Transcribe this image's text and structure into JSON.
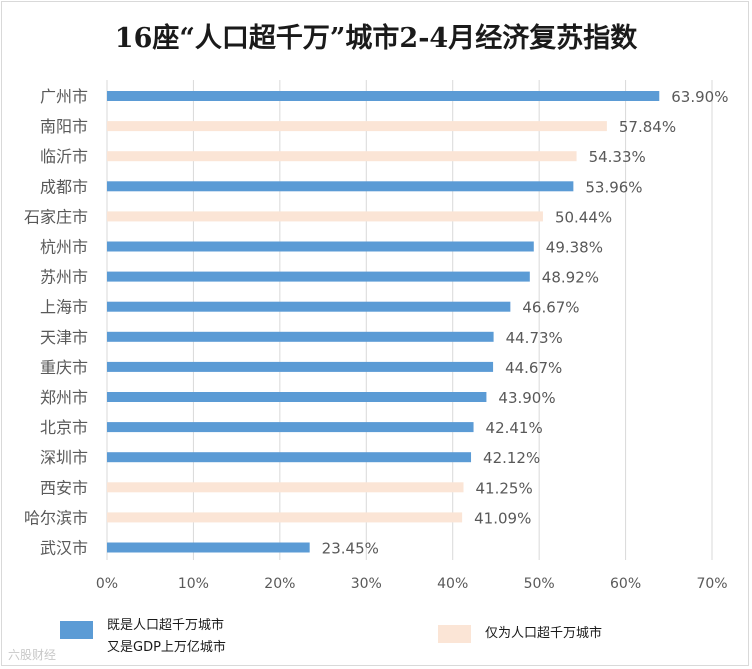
{
  "chart_data": {
    "type": "bar",
    "orientation": "horizontal",
    "title": "16座“人口超千万”城市2-4月经济复苏指数",
    "categories": [
      "广州市",
      "南阳市",
      "临沂市",
      "成都市",
      "石家庄市",
      "杭州市",
      "苏州市",
      "上海市",
      "天津市",
      "重庆市",
      "郑州市",
      "北京市",
      "深圳市",
      "西安市",
      "哈尔滨市",
      "武汉市"
    ],
    "values": [
      63.9,
      57.84,
      54.33,
      53.96,
      50.44,
      49.38,
      48.92,
      46.67,
      44.73,
      44.67,
      43.9,
      42.41,
      42.12,
      41.25,
      41.09,
      23.45
    ],
    "value_labels": [
      "63.90%",
      "57.84%",
      "54.33%",
      "53.96%",
      "50.44%",
      "49.38%",
      "48.92%",
      "46.67%",
      "44.73%",
      "44.67%",
      "43.90%",
      "42.41%",
      "42.12%",
      "41.25%",
      "41.09%",
      "23.45%"
    ],
    "group": [
      "both",
      "only",
      "only",
      "both",
      "only",
      "both",
      "both",
      "both",
      "both",
      "both",
      "both",
      "both",
      "both",
      "only",
      "only",
      "both"
    ],
    "xlim": [
      0,
      70
    ],
    "x_ticks": [
      0,
      10,
      20,
      30,
      40,
      50,
      60,
      70
    ],
    "x_tick_labels": [
      "0%",
      "10%",
      "20%",
      "30%",
      "40%",
      "50%",
      "60%",
      "70%"
    ],
    "grid": "vertical",
    "legend_position": "bottom",
    "colors": {
      "both": "#5b9bd5",
      "only": "#fbe5d6",
      "grid": "#d9d9d9",
      "text": "#595959"
    }
  },
  "legend": {
    "both": "既是人口超千万城市\n又是GDP上万亿城市",
    "only": "仅为人口超千万城市"
  },
  "watermark": "六股财经"
}
